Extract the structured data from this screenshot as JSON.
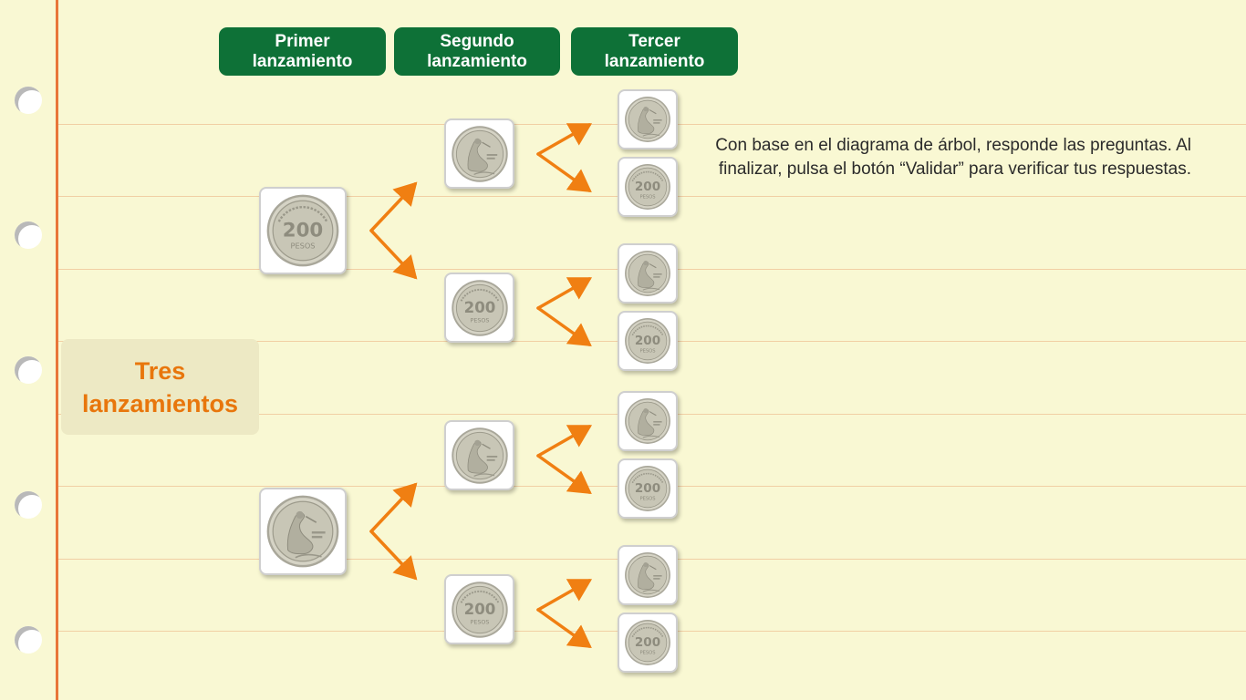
{
  "headers": {
    "first": "Primer\nlanzamiento",
    "second": "Segundo\nlanzamiento",
    "third": "Tercer\nlanzamiento"
  },
  "title": "Tres\nlanzamientos",
  "instructions": "Con base en el diagrama de árbol, responde las preguntas. Al finalizar, pulsa el botón “Validar” para verificar tus respuestas.",
  "coin_faces": {
    "heads_number": "200",
    "heads_unit": "PESOS"
  },
  "tree": {
    "first": [
      "heads",
      "tails"
    ],
    "second": [
      "tails",
      "heads",
      "tails",
      "heads"
    ],
    "third": [
      "tails",
      "heads",
      "tails",
      "heads",
      "tails",
      "heads",
      "tails",
      "heads"
    ]
  },
  "colors": {
    "header_bg": "#0e7137",
    "arrow": "#f07f12",
    "title_text": "#e8760c",
    "margin_line": "#e8763a",
    "paper": "#f9f8d3"
  }
}
